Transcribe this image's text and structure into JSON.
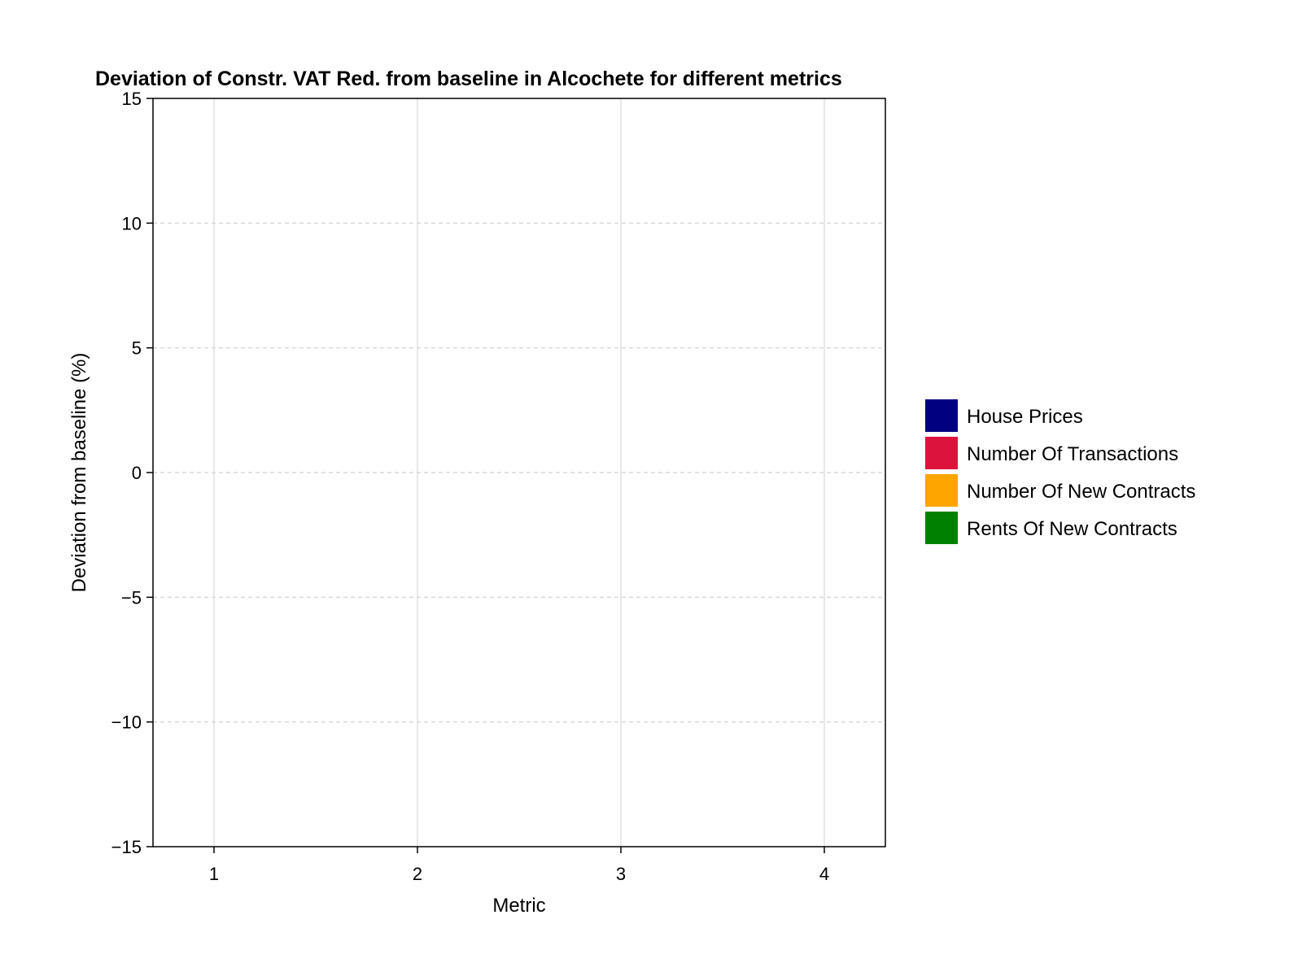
{
  "chart_data": {
    "type": "bar",
    "title": "Deviation of Constr. VAT Red. from baseline in Alcochete for different metrics",
    "xlabel": "Metric",
    "ylabel": "Deviation from baseline (%)",
    "x_ticks": [
      "1",
      "2",
      "3",
      "4"
    ],
    "xlim": [
      0.7,
      4.3
    ],
    "ylim": [
      -15,
      15
    ],
    "y_ticks": [
      -15,
      -10,
      -5,
      0,
      5,
      10,
      15
    ],
    "y_tick_labels": [
      "−15",
      "−10",
      "−5",
      "0",
      "5",
      "10",
      "15"
    ],
    "x_grid": true,
    "y_grid": "dashed",
    "legend_position": "right",
    "series": [
      {
        "name": "House Prices",
        "color": "#000080",
        "values": []
      },
      {
        "name": "Number Of Transactions",
        "color": "#DC143C",
        "values": []
      },
      {
        "name": "Number Of New Contracts",
        "color": "#FFA500",
        "values": []
      },
      {
        "name": "Rents Of New Contracts",
        "color": "#008000",
        "values": []
      }
    ]
  }
}
